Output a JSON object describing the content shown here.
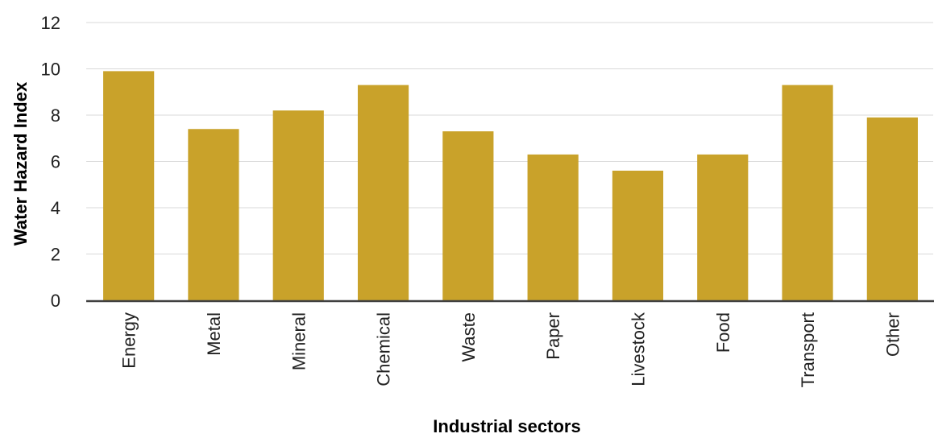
{
  "chart_data": {
    "type": "bar",
    "title": "",
    "xlabel": "Industrial sectors",
    "ylabel": "Water Hazard Index",
    "categories": [
      "Energy",
      "Metal",
      "Mineral",
      "Chemical",
      "Waste",
      "Paper",
      "Livestock",
      "Food",
      "Transport",
      "Other"
    ],
    "values": [
      9.9,
      7.4,
      8.2,
      9.3,
      7.3,
      6.3,
      5.6,
      6.3,
      9.3,
      7.9
    ],
    "ylim": [
      0,
      12
    ],
    "yticks": [
      "0",
      "2",
      "4",
      "6",
      "8",
      "10",
      "12"
    ],
    "grid": true,
    "legend": "none",
    "bar_color": "#c9a22a",
    "gridline_color": "#d9d9d9",
    "axis_color": "#404040"
  }
}
